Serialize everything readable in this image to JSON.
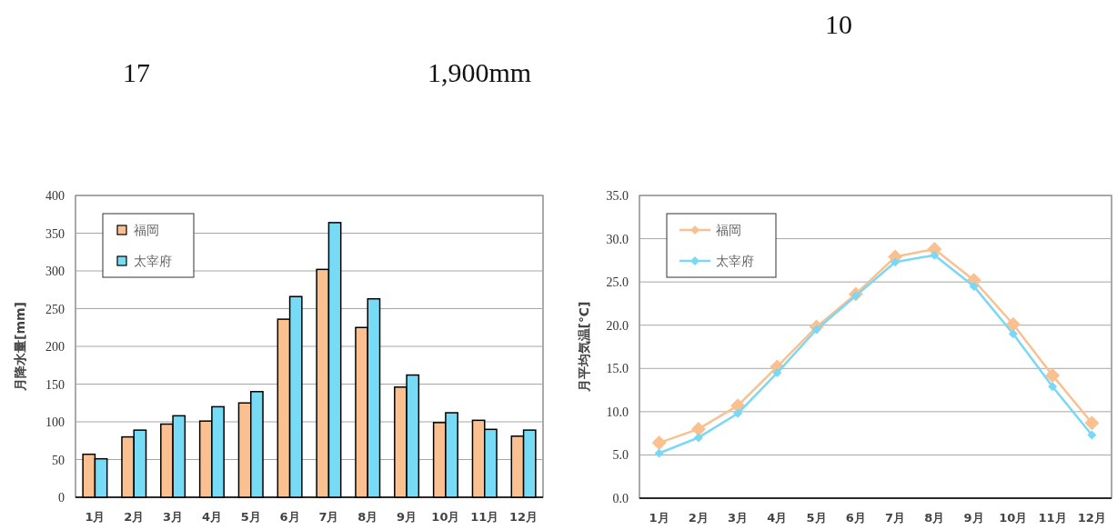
{
  "chart_data": [
    {
      "type": "bar",
      "annotations": [
        "17",
        "1,900mm"
      ],
      "ylabel": "月降水量[mm]",
      "categories": [
        "1月",
        "2月",
        "3月",
        "4月",
        "5月",
        "6月",
        "7月",
        "8月",
        "9月",
        "10月",
        "11月",
        "12月"
      ],
      "series": [
        {
          "name": "福岡",
          "color": "#fac090",
          "values": [
            57,
            80,
            97,
            101,
            125,
            236,
            302,
            225,
            146,
            99,
            102,
            81
          ]
        },
        {
          "name": "太宰府",
          "color": "#77dbf5",
          "values": [
            51,
            89,
            108,
            120,
            140,
            266,
            364,
            263,
            162,
            112,
            90,
            89
          ]
        }
      ],
      "ylim": [
        0,
        400
      ],
      "yticks": [
        0,
        50,
        100,
        150,
        200,
        250,
        300,
        350,
        400
      ],
      "grid": "y",
      "legend": "top left"
    },
    {
      "type": "line",
      "annotations": [
        "10"
      ],
      "ylabel": "月平均気温[℃]",
      "categories": [
        "1月",
        "2月",
        "3月",
        "4月",
        "5月",
        "6月",
        "7月",
        "8月",
        "9月",
        "10月",
        "11月",
        "12月"
      ],
      "series": [
        {
          "name": "福岡",
          "color": "#fac090",
          "values": [
            6.4,
            8.0,
            10.7,
            15.2,
            19.8,
            23.6,
            27.9,
            28.8,
            25.2,
            20.1,
            14.2,
            8.7
          ]
        },
        {
          "name": "太宰府",
          "color": "#7ad7f5",
          "values": [
            5.2,
            7.0,
            9.8,
            14.5,
            19.5,
            23.4,
            27.3,
            28.1,
            24.5,
            19.0,
            12.9,
            7.3
          ]
        }
      ],
      "ylim": [
        0,
        35
      ],
      "yticks": [
        {
          "value": 0,
          "label": "0.0"
        },
        {
          "value": 5,
          "label": "5.0"
        },
        {
          "value": 10,
          "label": "10.0"
        },
        {
          "value": 15,
          "label": "15.0"
        },
        {
          "value": 20,
          "label": "20.0"
        },
        {
          "value": 25,
          "label": "25.0"
        },
        {
          "value": 30,
          "label": "30.0"
        },
        {
          "value": 35,
          "label": "35.0"
        }
      ],
      "grid": "y",
      "legend": "top left",
      "marker": "diamond"
    }
  ]
}
